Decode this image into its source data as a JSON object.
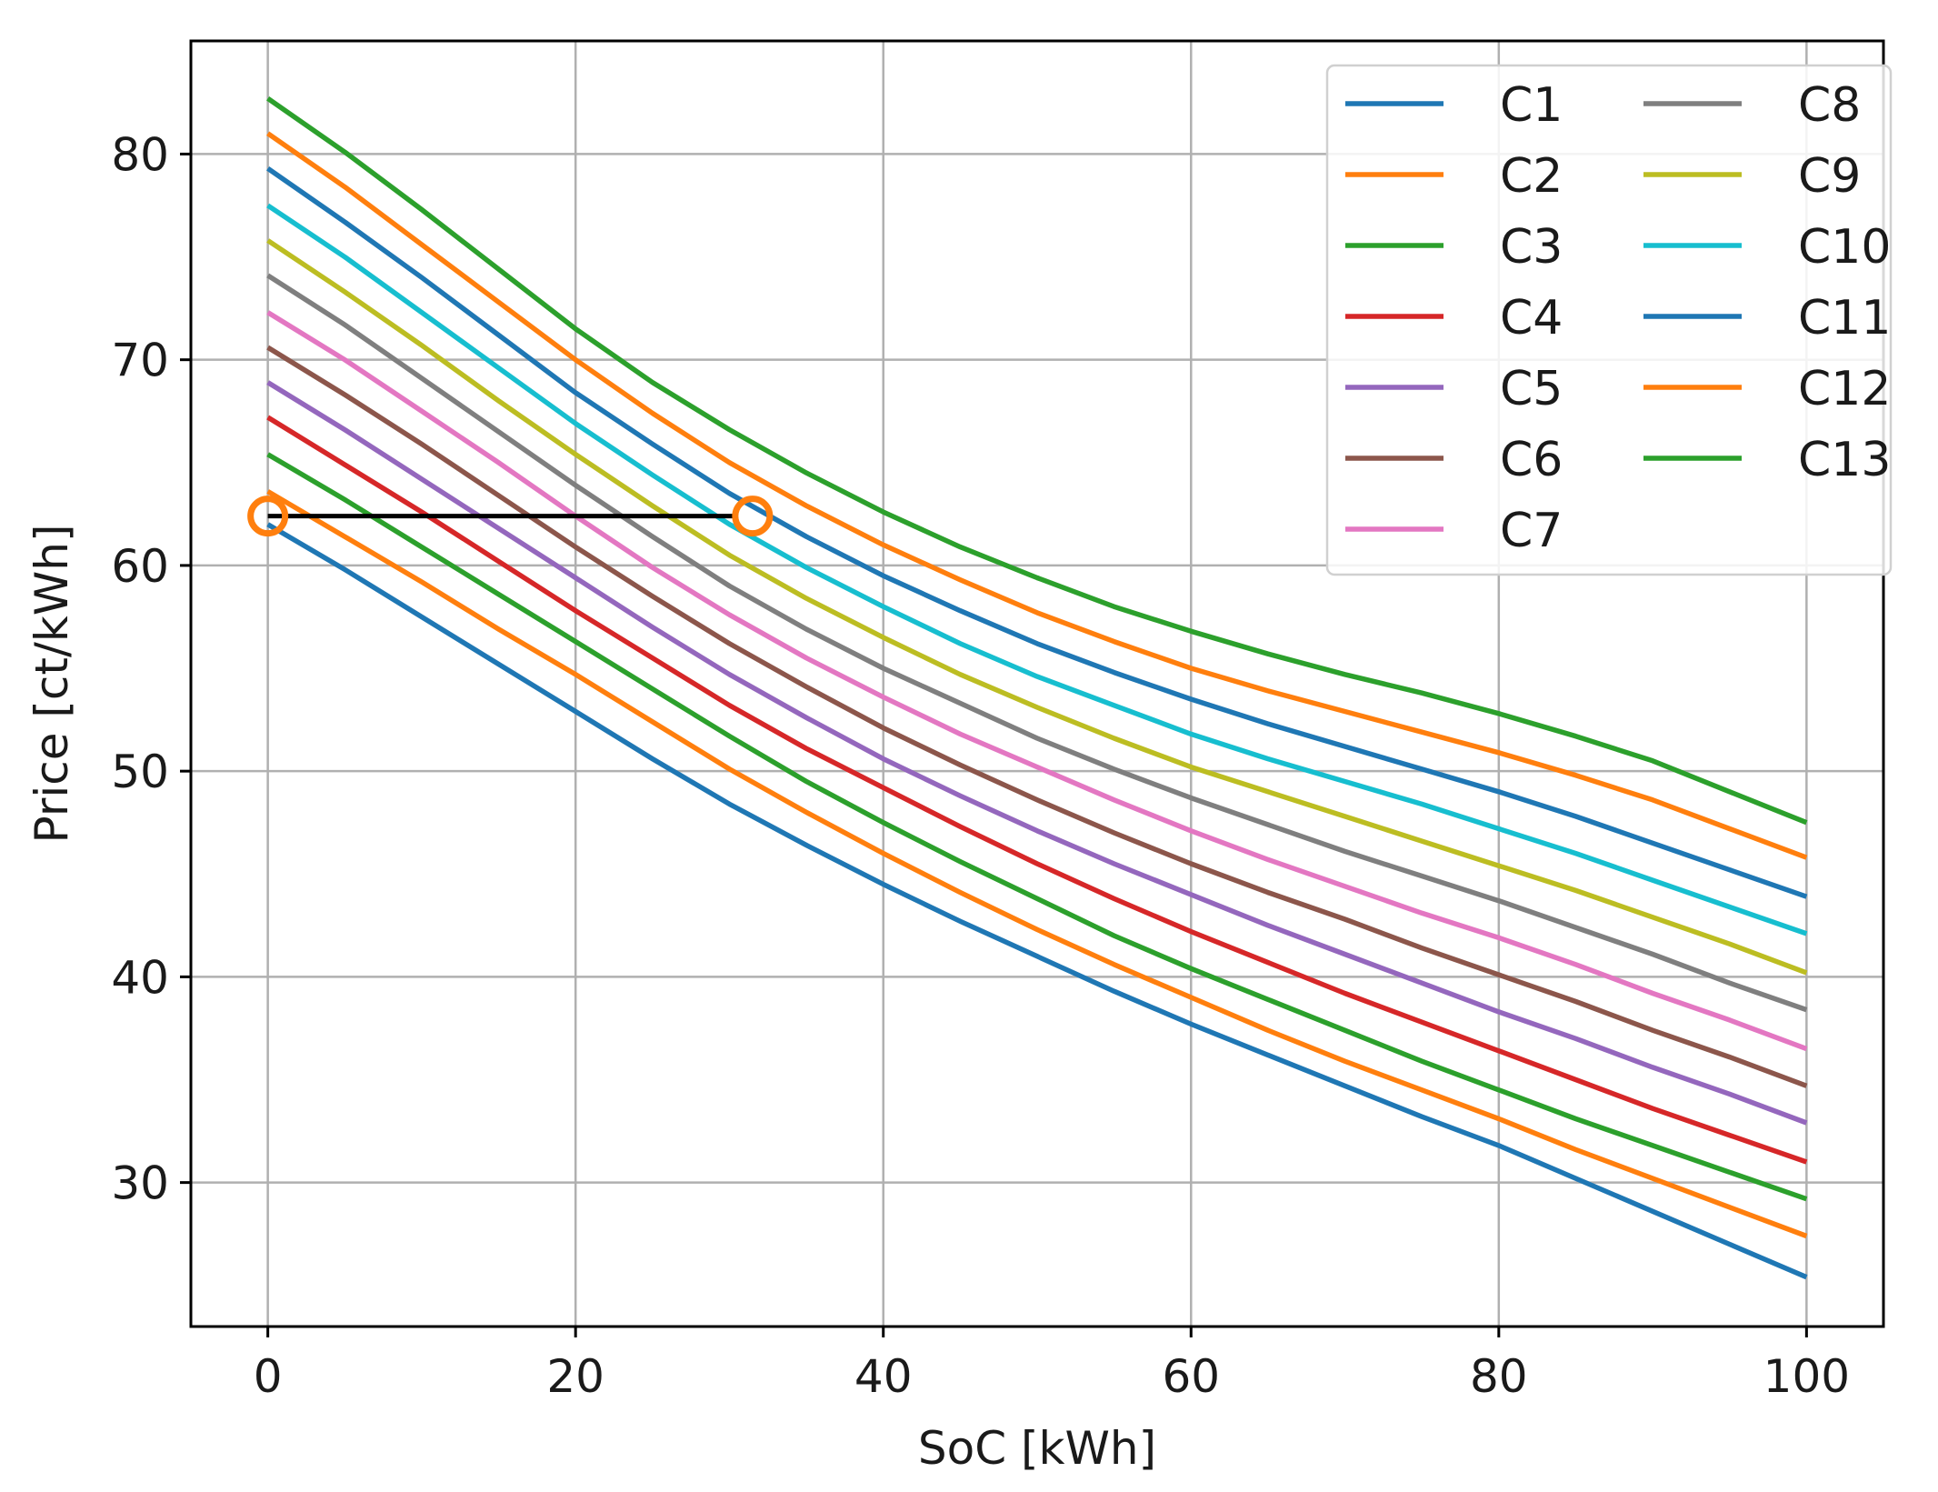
{
  "chart_data": {
    "type": "line",
    "title": "",
    "xlabel": "SoC [kWh]",
    "ylabel": "Price [ct/kWh]",
    "xlim": [
      -5,
      105
    ],
    "ylim": [
      23,
      85.5
    ],
    "grid": true,
    "legend_position": "top-right",
    "legend_columns": 2,
    "x_ticks": [
      0,
      20,
      40,
      60,
      80,
      100
    ],
    "y_ticks": [
      30,
      40,
      50,
      60,
      70,
      80
    ],
    "x_tick_labels": [
      "0",
      "20",
      "40",
      "60",
      "80",
      "100"
    ],
    "y_tick_labels": [
      "30",
      "40",
      "50",
      "60",
      "70",
      "80"
    ],
    "x": [
      0,
      5,
      10,
      15,
      20,
      25,
      30,
      35,
      40,
      45,
      50,
      55,
      60,
      65,
      70,
      75,
      80,
      85,
      90,
      95,
      100
    ],
    "series": [
      {
        "name": "C1",
        "color": "#1f77b4",
        "values": [
          62.0,
          59.8,
          57.5,
          55.2,
          52.9,
          50.6,
          48.4,
          46.4,
          44.5,
          42.7,
          41.0,
          39.3,
          37.7,
          36.2,
          34.7,
          33.2,
          31.8,
          30.2,
          28.6,
          27.0,
          25.4
        ]
      },
      {
        "name": "C2",
        "color": "#ff7f0e",
        "values": [
          63.6,
          61.4,
          59.2,
          56.9,
          54.7,
          52.4,
          50.1,
          48.0,
          46.0,
          44.1,
          42.3,
          40.6,
          39.0,
          37.4,
          35.9,
          34.5,
          33.1,
          31.6,
          30.2,
          28.8,
          27.4
        ]
      },
      {
        "name": "C3",
        "color": "#2ca02c",
        "values": [
          65.4,
          63.2,
          60.9,
          58.6,
          56.3,
          54.0,
          51.7,
          49.5,
          47.5,
          45.6,
          43.8,
          42.0,
          40.4,
          38.9,
          37.4,
          35.9,
          34.5,
          33.1,
          31.8,
          30.5,
          29.2
        ]
      },
      {
        "name": "C4",
        "color": "#d62728",
        "values": [
          67.2,
          64.9,
          62.6,
          60.2,
          57.8,
          55.5,
          53.2,
          51.1,
          49.2,
          47.3,
          45.5,
          43.8,
          42.2,
          40.7,
          39.2,
          37.8,
          36.4,
          35.0,
          33.6,
          32.3,
          31.0
        ]
      },
      {
        "name": "C5",
        "color": "#9467bd",
        "values": [
          68.9,
          66.6,
          64.2,
          61.8,
          59.4,
          57.0,
          54.7,
          52.6,
          50.6,
          48.8,
          47.1,
          45.5,
          44.0,
          42.5,
          41.1,
          39.7,
          38.3,
          37.0,
          35.6,
          34.3,
          32.9
        ]
      },
      {
        "name": "C6",
        "color": "#8c564b",
        "values": [
          70.6,
          68.3,
          65.9,
          63.4,
          60.9,
          58.5,
          56.2,
          54.1,
          52.1,
          50.3,
          48.6,
          47.0,
          45.5,
          44.1,
          42.8,
          41.4,
          40.1,
          38.8,
          37.4,
          36.1,
          34.7
        ]
      },
      {
        "name": "C7",
        "color": "#e377c2",
        "values": [
          72.3,
          70.0,
          67.5,
          65.0,
          62.4,
          59.9,
          57.6,
          55.5,
          53.6,
          51.8,
          50.2,
          48.6,
          47.1,
          45.7,
          44.4,
          43.1,
          41.9,
          40.6,
          39.2,
          37.9,
          36.5
        ]
      },
      {
        "name": "C8",
        "color": "#7f7f7f",
        "values": [
          74.1,
          71.7,
          69.1,
          66.5,
          63.9,
          61.4,
          59.0,
          56.9,
          55.0,
          53.3,
          51.6,
          50.1,
          48.7,
          47.4,
          46.1,
          44.9,
          43.7,
          42.4,
          41.1,
          39.7,
          38.4
        ]
      },
      {
        "name": "C9",
        "color": "#bcbd22",
        "values": [
          75.8,
          73.3,
          70.7,
          68.0,
          65.4,
          62.9,
          60.5,
          58.4,
          56.5,
          54.7,
          53.1,
          51.6,
          50.2,
          49.0,
          47.8,
          46.6,
          45.4,
          44.2,
          42.9,
          41.6,
          40.2
        ]
      },
      {
        "name": "C10",
        "color": "#17becf",
        "values": [
          77.5,
          75.0,
          72.3,
          69.6,
          66.9,
          64.4,
          62.0,
          59.9,
          58.0,
          56.2,
          54.6,
          53.2,
          51.8,
          50.6,
          49.5,
          48.4,
          47.2,
          46.0,
          44.7,
          43.4,
          42.1
        ]
      },
      {
        "name": "C11",
        "color": "#1f77b4",
        "values": [
          79.3,
          76.7,
          74.0,
          71.2,
          68.4,
          65.9,
          63.5,
          61.4,
          59.5,
          57.8,
          56.2,
          54.8,
          53.5,
          52.3,
          51.2,
          50.1,
          49.0,
          47.8,
          46.5,
          45.2,
          43.9
        ]
      },
      {
        "name": "C12",
        "color": "#ff7f0e",
        "values": [
          81.0,
          78.4,
          75.6,
          72.8,
          70.0,
          67.4,
          65.0,
          62.9,
          61.0,
          59.3,
          57.7,
          56.3,
          55.0,
          53.9,
          52.9,
          51.9,
          50.9,
          49.8,
          48.6,
          47.2,
          45.8
        ]
      },
      {
        "name": "C13",
        "color": "#2ca02c",
        "values": [
          82.7,
          80.1,
          77.3,
          74.4,
          71.5,
          68.9,
          66.6,
          64.5,
          62.6,
          60.9,
          59.4,
          58.0,
          56.8,
          55.7,
          54.7,
          53.8,
          52.8,
          51.7,
          50.5,
          49.0,
          47.5
        ]
      }
    ],
    "annotations": {
      "horizontal_line": {
        "x_start": 0,
        "x_end": 31.5,
        "y": 62.4,
        "color": "#000000"
      },
      "circle_markers": [
        {
          "x": 0,
          "y": 62.4,
          "color": "#ff7f0e"
        },
        {
          "x": 31.5,
          "y": 62.4,
          "color": "#ff7f0e"
        }
      ]
    }
  }
}
